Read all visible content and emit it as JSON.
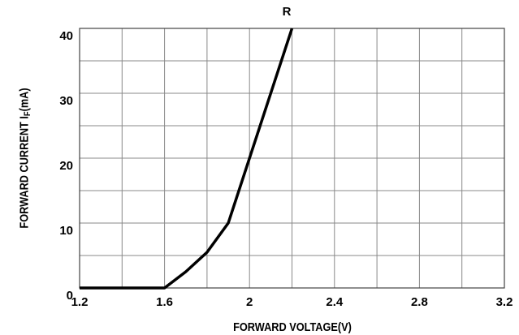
{
  "chart_data": {
    "type": "line",
    "title": "R",
    "xlabel": "FORWARD VOLTAGE(V)",
    "ylabel": [
      "FORWARD CURRENT I",
      "F",
      "(mA)"
    ],
    "series": [
      {
        "name": "R",
        "color": "#000000",
        "x": [
          1.2,
          1.6,
          1.7,
          1.8,
          1.9,
          2.0,
          2.1,
          2.2
        ],
        "values": [
          0,
          0,
          2.5,
          5.5,
          10,
          20,
          30,
          40
        ]
      }
    ],
    "xlim": [
      1.2,
      3.2
    ],
    "xticks": [
      1.2,
      1.6,
      2.0,
      2.4,
      2.8,
      3.2
    ],
    "xgrid": [
      1.4,
      1.8,
      2.2,
      2.6,
      3.0
    ],
    "ylim": [
      0,
      40
    ],
    "yticks": [
      0,
      10,
      20,
      30,
      40
    ],
    "ygrid": [
      5,
      15,
      25,
      35
    ],
    "grid": true
  }
}
